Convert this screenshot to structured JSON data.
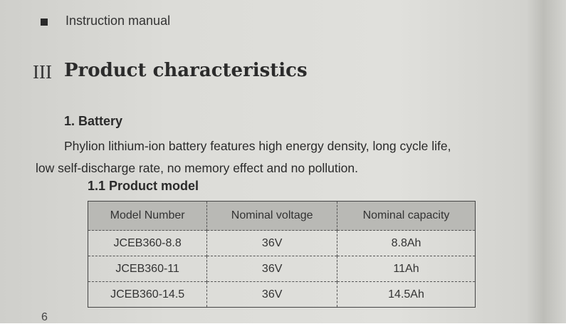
{
  "header": {
    "title": "Instruction manual"
  },
  "section": {
    "numeral": "III",
    "title": "Product characteristics"
  },
  "subsection": {
    "title": "1. Battery",
    "paragraph": [
      "Phylion lithium-ion battery features high energy density, long cycle life,",
      "low self-discharge rate, no memory effect and no pollution."
    ]
  },
  "subsubsection": {
    "title": "1.1 Product model"
  },
  "table": {
    "columns": [
      "Model Number",
      "Nominal voltage",
      "Nominal capacity"
    ],
    "rows": [
      [
        "JCEB360-8.8",
        "36V",
        "8.8Ah"
      ],
      [
        "JCEB360-11",
        "36V",
        "11Ah"
      ],
      [
        "JCEB360-14.5",
        "36V",
        "14.5Ah"
      ]
    ]
  },
  "footer": {
    "page_number": "6"
  }
}
